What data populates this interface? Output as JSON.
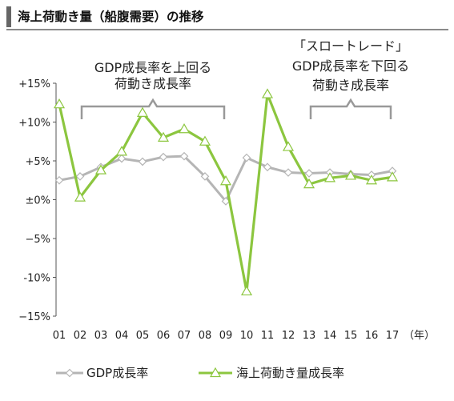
{
  "header": {
    "title": "海上荷動き量（船腹需要）の推移"
  },
  "chart_data": {
    "type": "line",
    "title": "海上荷動き量（船腹需要）の推移",
    "x_unit_label": "（年）",
    "categories": [
      "01",
      "02",
      "03",
      "04",
      "05",
      "06",
      "07",
      "08",
      "09",
      "10",
      "11",
      "12",
      "13",
      "14",
      "15",
      "16",
      "17"
    ],
    "y_ticks": [
      "+15%",
      "+10%",
      "+5%",
      "±0%",
      "−5%",
      "-10%",
      "−15%"
    ],
    "y_tick_values": [
      15,
      10,
      5,
      0,
      -5,
      -10,
      -15
    ],
    "ylim": [
      -15,
      15
    ],
    "grid": false,
    "legend_position": "bottom",
    "series": [
      {
        "name": "GDP成長率",
        "color": "#b5b5b5",
        "marker": "diamond",
        "values": [
          2.5,
          3.0,
          4.2,
          5.3,
          4.9,
          5.5,
          5.6,
          3.0,
          -0.2,
          5.4,
          4.2,
          3.5,
          3.4,
          3.5,
          3.3,
          3.2,
          3.7
        ]
      },
      {
        "name": "海上荷動き量成長率",
        "color": "#8cc63f",
        "marker": "triangle",
        "values": [
          12.3,
          0.3,
          3.8,
          6.2,
          11.2,
          8.0,
          9.1,
          7.5,
          2.4,
          -11.8,
          13.6,
          6.8,
          2.0,
          2.8,
          3.1,
          2.5,
          2.9
        ]
      }
    ],
    "annotations": [
      {
        "lines": [
          "GDP成長率を上回る",
          "荷動き成長率"
        ],
        "from": "02",
        "to": "09"
      },
      {
        "lines": [
          "「スロートレード」",
          "GDP成長率を下回る",
          "荷動き成長率"
        ],
        "from": "13",
        "to": "17"
      }
    ]
  }
}
